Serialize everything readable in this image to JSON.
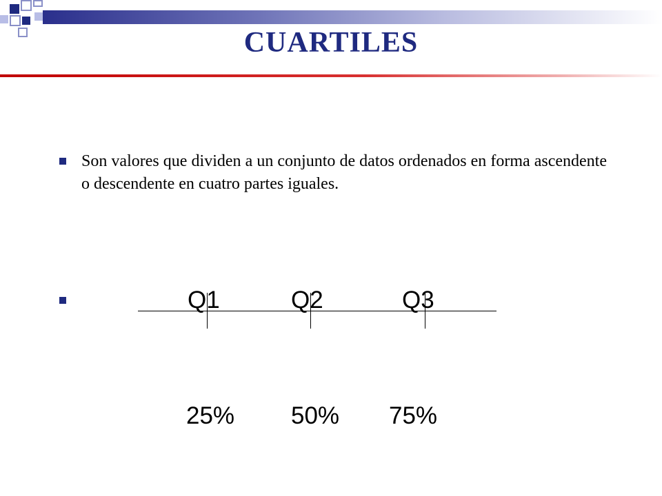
{
  "slide": {
    "title": "CUARTILES",
    "bullets": [
      "Son valores que dividen a un conjunto de datos ordenados en forma ascendente o descendente en cuatro partes iguales."
    ],
    "quartiles": [
      {
        "label": "Q1",
        "percent": "25%"
      },
      {
        "label": "Q2",
        "percent": "50%"
      },
      {
        "label": "Q3",
        "percent": "75%"
      }
    ]
  },
  "colors": {
    "title": "#1f2a80",
    "accent_red": "#c00000",
    "bullet": "#1f2a80"
  }
}
